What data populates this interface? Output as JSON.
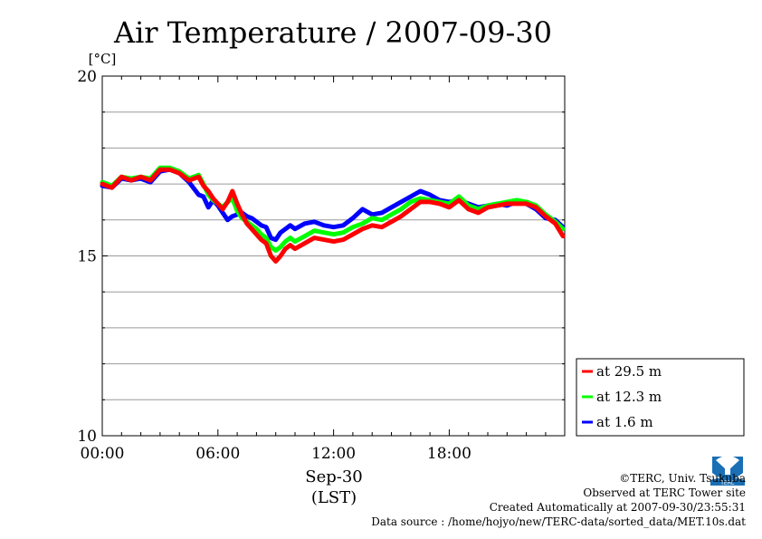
{
  "chart_data": {
    "type": "line",
    "title": "Air Temperature / 2007-09-30",
    "ylabel": "[°C]",
    "ylim": [
      10,
      20
    ],
    "yticks": [
      10,
      15,
      20
    ],
    "xlim": [
      0,
      23.99
    ],
    "xticks": [
      {
        "value": 0,
        "label": "00:00"
      },
      {
        "value": 6,
        "label": "06:00"
      },
      {
        "value": 12,
        "label": "12:00"
      },
      {
        "value": 18,
        "label": "18:00"
      }
    ],
    "xlabel_date": "Sep-30",
    "xlabel_zone": "(LST)",
    "grid": true,
    "legend": "bottom-right",
    "x": [
      0,
      0.5,
      1,
      1.5,
      2,
      2.5,
      3,
      3.5,
      4,
      4.5,
      5,
      5.25,
      5.5,
      5.75,
      6,
      6.25,
      6.5,
      6.75,
      7,
      7.25,
      7.5,
      7.75,
      8,
      8.25,
      8.5,
      8.75,
      9,
      9.25,
      9.5,
      9.75,
      10,
      10.5,
      11,
      11.5,
      12,
      12.5,
      13,
      13.5,
      14,
      14.5,
      15,
      15.5,
      16,
      16.5,
      17,
      17.5,
      18,
      18.5,
      19,
      19.5,
      20,
      20.5,
      21,
      21.5,
      22,
      22.5,
      23,
      23.5,
      23.9
    ],
    "series": [
      {
        "name": "at 29.5 m",
        "color": "#ff0000",
        "values": [
          17.0,
          16.9,
          17.2,
          17.1,
          17.2,
          17.1,
          17.4,
          17.4,
          17.3,
          17.1,
          17.2,
          16.95,
          16.8,
          16.6,
          16.45,
          16.3,
          16.5,
          16.8,
          16.45,
          16.15,
          15.9,
          15.75,
          15.6,
          15.45,
          15.35,
          15.0,
          14.85,
          15.0,
          15.2,
          15.3,
          15.2,
          15.35,
          15.5,
          15.45,
          15.4,
          15.45,
          15.6,
          15.75,
          15.85,
          15.8,
          15.95,
          16.1,
          16.3,
          16.5,
          16.5,
          16.45,
          16.35,
          16.55,
          16.3,
          16.2,
          16.35,
          16.4,
          16.45,
          16.45,
          16.45,
          16.35,
          16.1,
          15.9,
          15.55
        ]
      },
      {
        "name": "at 12.3 m",
        "color": "#00ff00",
        "values": [
          17.05,
          16.95,
          17.2,
          17.15,
          17.2,
          17.15,
          17.45,
          17.45,
          17.35,
          17.15,
          17.25,
          17.0,
          16.7,
          16.55,
          16.45,
          16.35,
          16.5,
          16.6,
          16.25,
          16.05,
          15.95,
          15.85,
          15.75,
          15.6,
          15.5,
          15.25,
          15.15,
          15.25,
          15.4,
          15.5,
          15.4,
          15.55,
          15.7,
          15.65,
          15.6,
          15.65,
          15.8,
          15.9,
          16.05,
          16.0,
          16.15,
          16.3,
          16.5,
          16.6,
          16.55,
          16.5,
          16.45,
          16.65,
          16.4,
          16.3,
          16.4,
          16.45,
          16.5,
          16.55,
          16.5,
          16.4,
          16.15,
          15.95,
          15.75
        ]
      },
      {
        "name": "at 1.6 m",
        "color": "#0000ff",
        "values": [
          16.95,
          16.9,
          17.15,
          17.1,
          17.15,
          17.05,
          17.35,
          17.4,
          17.3,
          17.05,
          16.7,
          16.65,
          16.35,
          16.55,
          16.4,
          16.2,
          16.0,
          16.1,
          16.15,
          16.2,
          16.1,
          16.05,
          15.95,
          15.85,
          15.8,
          15.5,
          15.45,
          15.65,
          15.75,
          15.85,
          15.75,
          15.9,
          15.95,
          15.85,
          15.8,
          15.85,
          16.05,
          16.3,
          16.15,
          16.2,
          16.35,
          16.5,
          16.65,
          16.8,
          16.7,
          16.55,
          16.5,
          16.55,
          16.45,
          16.35,
          16.4,
          16.45,
          16.4,
          16.5,
          16.45,
          16.3,
          16.05,
          16.0,
          15.8
        ]
      }
    ]
  },
  "footer": {
    "copyright": "©TERC, Univ. Tsukuba",
    "observed": "Observed at TERC Tower site",
    "created": "Created Automatically at 2007-09-30/23:55:31",
    "source": "Data source : /home/hojyo/new/TERC-data/sorted_data/MET.10s.dat"
  },
  "logo": {
    "icon": "terc-logo-icon",
    "text": "TERC",
    "color": "#1a6fb5"
  }
}
